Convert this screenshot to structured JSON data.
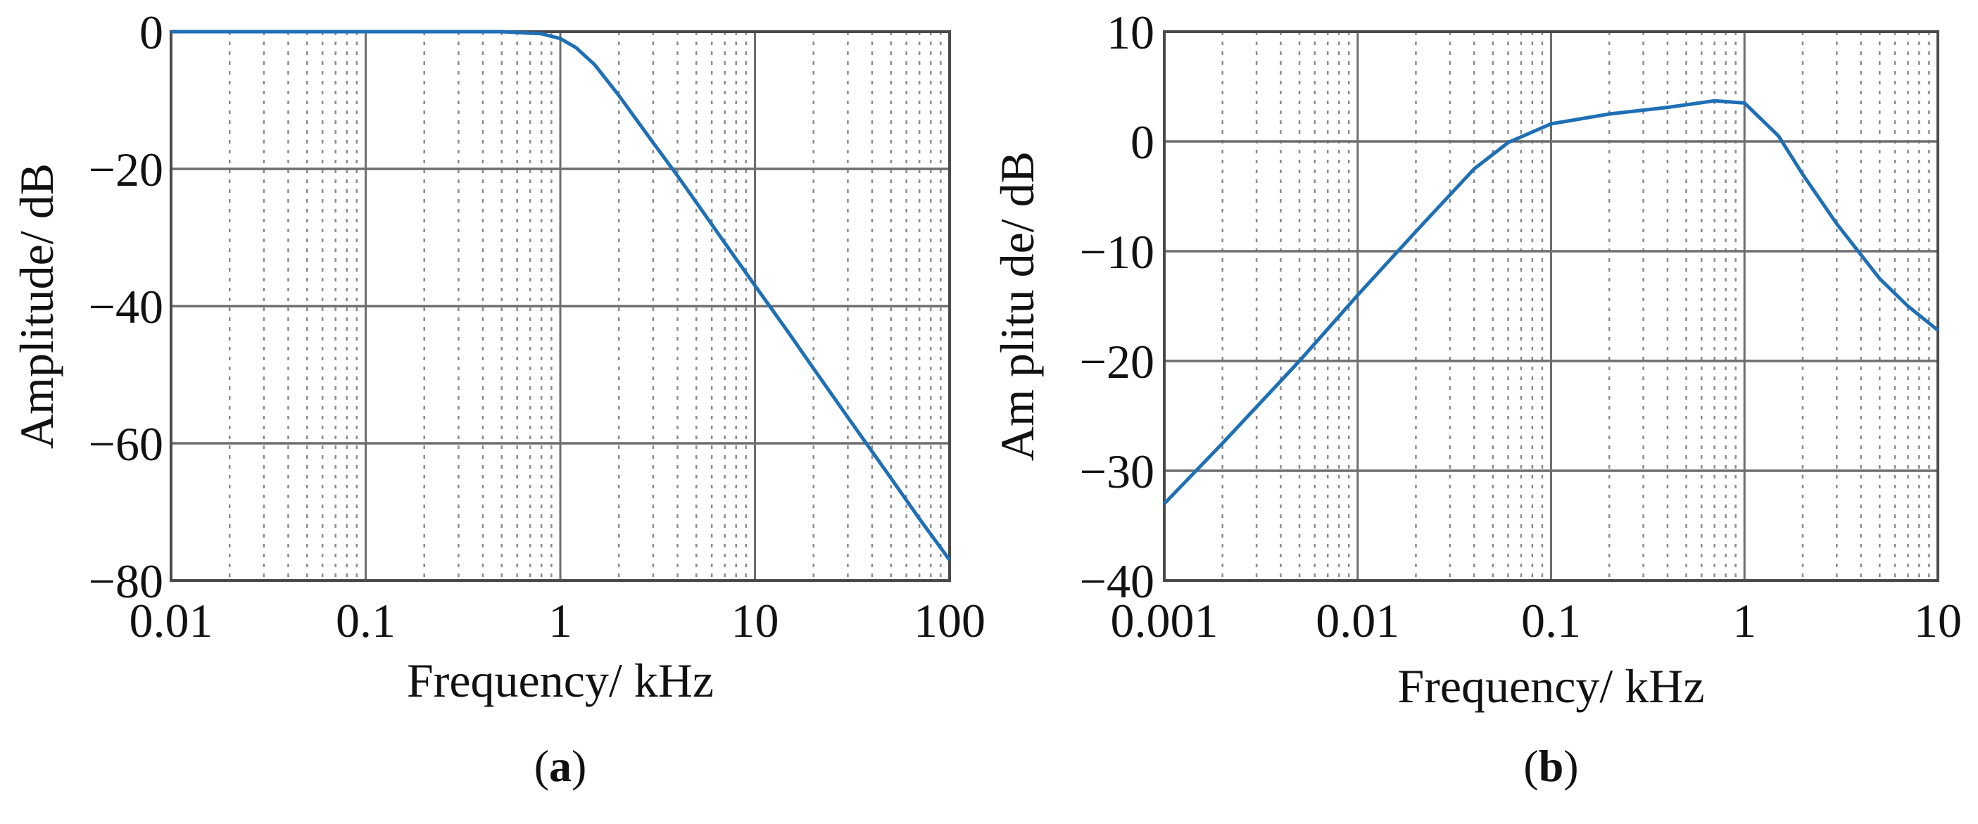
{
  "chart_data": [
    {
      "type": "line",
      "panel_label": "a",
      "title": "",
      "xlabel": "Frequency/ kHz",
      "ylabel": "Amplitude/ dB",
      "xscale": "log",
      "xlim": [
        0.01,
        100
      ],
      "ylim": [
        -80,
        0
      ],
      "xticks": [
        0.01,
        0.1,
        1,
        10,
        100
      ],
      "xtick_labels": [
        "0.01",
        "0.1",
        "1",
        "10",
        "100"
      ],
      "yticks": [
        0,
        -20,
        -40,
        -60,
        -80
      ],
      "ytick_labels": [
        "0",
        "−20",
        "−40",
        "−60",
        "−80"
      ],
      "grid": true,
      "line_color": "#1f6fb5",
      "series": [
        {
          "x": [
            0.01,
            0.1,
            0.5,
            0.8,
            1.0,
            1.2,
            1.5,
            2,
            3,
            4,
            5,
            7,
            10,
            15,
            20,
            30,
            50,
            70,
            100
          ],
          "y": [
            0,
            0,
            0,
            -0.3,
            -1.0,
            -2.3,
            -4.8,
            -9.3,
            -16.2,
            -21.0,
            -24.9,
            -30.8,
            -37.0,
            -44.0,
            -49.1,
            -56.2,
            -65.1,
            -71.0,
            -77.0
          ]
        }
      ]
    },
    {
      "type": "line",
      "panel_label": "b",
      "title": "",
      "xlabel": "Frequency/ kHz",
      "ylabel": "Am plitu de/ dB",
      "xscale": "log",
      "xlim": [
        0.001,
        10
      ],
      "ylim": [
        -40,
        10
      ],
      "xticks": [
        0.001,
        0.01,
        0.1,
        1,
        10
      ],
      "xtick_labels": [
        "0.001",
        "0.01",
        "0.1",
        "1",
        "10"
      ],
      "yticks": [
        10,
        0,
        -10,
        -20,
        -30,
        -40
      ],
      "ytick_labels": [
        "10",
        "0",
        "−10",
        "−20",
        "−30",
        "−40"
      ],
      "grid": true,
      "line_color": "#1f6fb5",
      "series": [
        {
          "x": [
            0.001,
            0.002,
            0.005,
            0.01,
            0.02,
            0.04,
            0.06,
            0.1,
            0.2,
            0.4,
            0.7,
            1.0,
            1.5,
            2,
            3,
            5,
            7,
            10
          ],
          "y": [
            -33.0,
            -27.5,
            -20.0,
            -14.0,
            -8.2,
            -2.5,
            -0.1,
            1.6,
            2.5,
            3.1,
            3.7,
            3.5,
            0.5,
            -3.0,
            -7.5,
            -12.5,
            -15.0,
            -17.2
          ]
        }
      ]
    }
  ]
}
